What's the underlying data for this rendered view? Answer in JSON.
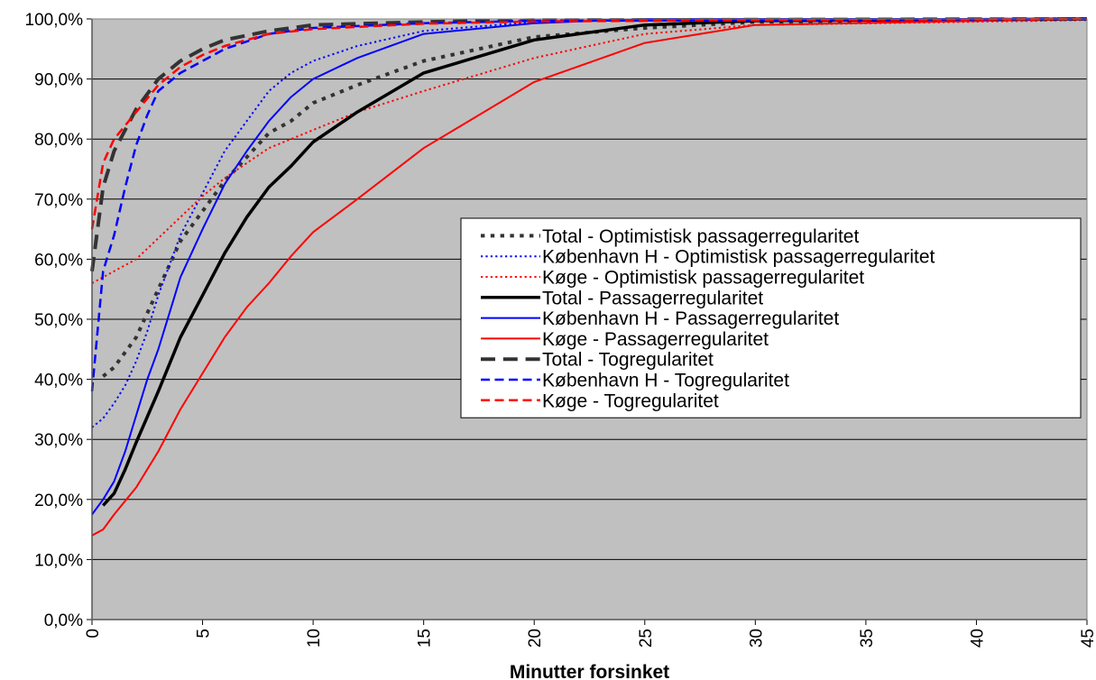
{
  "chart_data": {
    "type": "line",
    "title": "",
    "xlabel": "Minutter forsinket",
    "ylabel": "",
    "xlim": [
      0,
      45
    ],
    "ylim": [
      0,
      100
    ],
    "x_ticks": [
      "0",
      "5",
      "10",
      "15",
      "20",
      "25",
      "30",
      "35",
      "40",
      "45"
    ],
    "y_ticks": [
      "0,0%",
      "10,0%",
      "20,0%",
      "30,0%",
      "40,0%",
      "50,0%",
      "60,0%",
      "70,0%",
      "80,0%",
      "90,0%",
      "100,0%"
    ],
    "grid": "horizontal",
    "plot_background": "#c0c0c0",
    "legend_position": "right",
    "series": [
      {
        "name": "Total - Optimistisk passagerregularitet",
        "color": "#333333",
        "style": "dotted",
        "width": 4,
        "points": [
          [
            0.5,
            40.5
          ],
          [
            1,
            42
          ],
          [
            2,
            47
          ],
          [
            3,
            55
          ],
          [
            4,
            63
          ],
          [
            5,
            68
          ],
          [
            6,
            73
          ],
          [
            7,
            77
          ],
          [
            8,
            81
          ],
          [
            9,
            83
          ],
          [
            10,
            86
          ],
          [
            12,
            89
          ],
          [
            15,
            93
          ],
          [
            20,
            97
          ],
          [
            25,
            98.5
          ],
          [
            30,
            99.5
          ],
          [
            45,
            100
          ]
        ]
      },
      {
        "name": "København H - Optimistisk passagerregularitet",
        "color": "#0000ff",
        "style": "dotted",
        "width": 2,
        "points": [
          [
            0,
            32
          ],
          [
            0.5,
            33.5
          ],
          [
            1,
            36
          ],
          [
            1.5,
            39
          ],
          [
            2,
            43
          ],
          [
            2.5,
            48
          ],
          [
            3,
            54
          ],
          [
            3.5,
            59
          ],
          [
            4,
            64
          ],
          [
            5,
            71
          ],
          [
            6,
            78
          ],
          [
            7,
            83
          ],
          [
            8,
            88
          ],
          [
            9,
            91
          ],
          [
            10,
            93
          ],
          [
            12,
            95.5
          ],
          [
            15,
            98
          ],
          [
            20,
            99.5
          ],
          [
            25,
            100
          ],
          [
            45,
            100
          ]
        ]
      },
      {
        "name": "Køge - Optimistisk passagerregularitet",
        "color": "#ff0000",
        "style": "dotted",
        "width": 2,
        "points": [
          [
            0,
            56
          ],
          [
            1,
            58
          ],
          [
            2,
            60
          ],
          [
            3,
            63.5
          ],
          [
            4,
            67
          ],
          [
            5,
            70.5
          ],
          [
            6,
            73.5
          ],
          [
            7,
            76
          ],
          [
            8,
            78.5
          ],
          [
            10,
            81.5
          ],
          [
            12,
            84.5
          ],
          [
            15,
            88
          ],
          [
            20,
            93.5
          ],
          [
            25,
            97.5
          ],
          [
            30,
            99
          ],
          [
            45,
            99.8
          ]
        ]
      },
      {
        "name": "Total - Passagerregularitet",
        "color": "#000000",
        "style": "solid",
        "width": 3.5,
        "points": [
          [
            0.5,
            19
          ],
          [
            1,
            21
          ],
          [
            1.5,
            25
          ],
          [
            2,
            29.5
          ],
          [
            3,
            38
          ],
          [
            4,
            47
          ],
          [
            5,
            54
          ],
          [
            6,
            61
          ],
          [
            7,
            67
          ],
          [
            8,
            72
          ],
          [
            9,
            75.5
          ],
          [
            10,
            79.5
          ],
          [
            12,
            84.5
          ],
          [
            15,
            91
          ],
          [
            20,
            96.5
          ],
          [
            25,
            99
          ],
          [
            30,
            99.7
          ],
          [
            45,
            100
          ]
        ]
      },
      {
        "name": "København H - Passagerregularitet",
        "color": "#0000ff",
        "style": "solid",
        "width": 2,
        "points": [
          [
            0,
            17.5
          ],
          [
            0.5,
            20
          ],
          [
            1,
            23
          ],
          [
            1.5,
            28
          ],
          [
            2,
            34
          ],
          [
            2.5,
            40
          ],
          [
            3,
            45
          ],
          [
            3.5,
            51
          ],
          [
            4,
            57
          ],
          [
            5,
            65
          ],
          [
            6,
            72.5
          ],
          [
            7,
            78
          ],
          [
            8,
            83
          ],
          [
            9,
            87
          ],
          [
            10,
            90
          ],
          [
            12,
            93.5
          ],
          [
            15,
            97.5
          ],
          [
            20,
            99.3
          ],
          [
            25,
            100
          ],
          [
            45,
            100
          ]
        ]
      },
      {
        "name": "Køge - Passagerregularitet",
        "color": "#ff0000",
        "style": "solid",
        "width": 2,
        "points": [
          [
            0,
            14
          ],
          [
            0.5,
            15
          ],
          [
            1,
            17.5
          ],
          [
            2,
            22
          ],
          [
            3,
            28
          ],
          [
            4,
            35
          ],
          [
            5,
            41
          ],
          [
            6,
            47
          ],
          [
            7,
            52
          ],
          [
            8,
            56
          ],
          [
            9,
            60.5
          ],
          [
            10,
            64.5
          ],
          [
            12,
            70
          ],
          [
            15,
            78.5
          ],
          [
            20,
            89.5
          ],
          [
            25,
            96
          ],
          [
            30,
            99
          ],
          [
            45,
            100
          ]
        ]
      },
      {
        "name": "Total - Togregularitet",
        "color": "#333333",
        "style": "dashed",
        "width": 4,
        "points": [
          [
            0,
            58
          ],
          [
            0.5,
            72
          ],
          [
            1,
            78
          ],
          [
            2,
            85
          ],
          [
            3,
            90
          ],
          [
            4,
            93
          ],
          [
            5,
            95
          ],
          [
            6,
            96.5
          ],
          [
            8,
            98
          ],
          [
            10,
            99
          ],
          [
            15,
            99.5
          ],
          [
            20,
            99.8
          ],
          [
            45,
            100
          ]
        ]
      },
      {
        "name": "København H - Togregularitet",
        "color": "#0000ff",
        "style": "dashed",
        "width": 2.5,
        "points": [
          [
            0,
            38
          ],
          [
            0.5,
            58
          ],
          [
            1,
            64
          ],
          [
            1.5,
            72
          ],
          [
            2,
            79
          ],
          [
            2.5,
            84
          ],
          [
            3,
            88
          ],
          [
            4,
            91
          ],
          [
            5,
            93
          ],
          [
            6,
            95
          ],
          [
            8,
            97.5
          ],
          [
            10,
            98.5
          ],
          [
            15,
            99.3
          ],
          [
            20,
            99.7
          ],
          [
            45,
            100
          ]
        ]
      },
      {
        "name": "Køge - Togregularitet",
        "color": "#ff0000",
        "style": "dashed",
        "width": 2.5,
        "points": [
          [
            0,
            65
          ],
          [
            0.5,
            76
          ],
          [
            1,
            80
          ],
          [
            2,
            84.5
          ],
          [
            3,
            89
          ],
          [
            4,
            92
          ],
          [
            5,
            94
          ],
          [
            6,
            95.5
          ],
          [
            8,
            97.5
          ],
          [
            10,
            98.3
          ],
          [
            15,
            99.2
          ],
          [
            20,
            99.6
          ],
          [
            45,
            100
          ]
        ]
      }
    ]
  }
}
